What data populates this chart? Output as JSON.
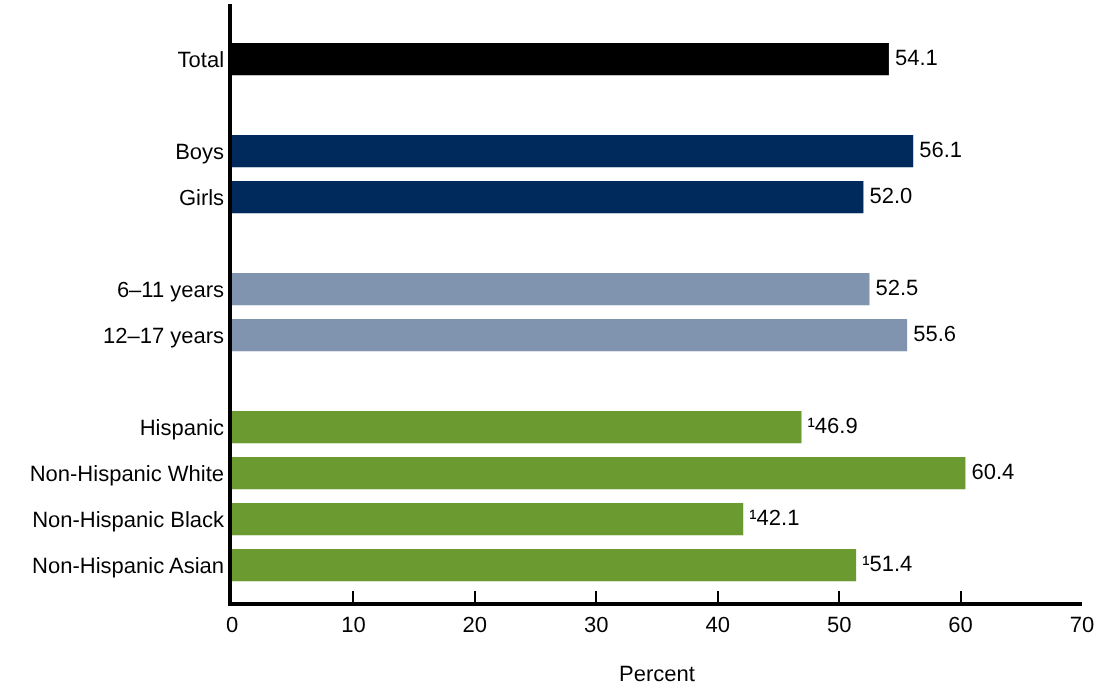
{
  "chart_data": {
    "type": "bar",
    "orientation": "horizontal",
    "xlabel": "Percent",
    "categories": [
      "Total",
      null,
      "Boys",
      "Girls",
      null,
      "6–11 years",
      "12–17 years",
      null,
      "Hispanic",
      "Non-Hispanic White",
      "Non-Hispanic Black",
      "Non-Hispanic Asian"
    ],
    "values": [
      54.1,
      null,
      56.1,
      52.0,
      null,
      52.5,
      55.6,
      null,
      46.9,
      60.4,
      42.1,
      51.4
    ],
    "colors": [
      "#000000",
      "#ffffff",
      "#002a5c",
      "#002a5c",
      "#ffffff",
      "#8094b0",
      "#8094b0",
      "#ffffff",
      "#6b9b30",
      "#6b9b30",
      "#6b9b30",
      "#6b9b30"
    ],
    "value_labels": [
      "54.1",
      null,
      "56.1",
      "52.0",
      null,
      "52.5",
      "55.6",
      null,
      "¹46.9",
      "60.4",
      "¹42.1",
      "¹51.4"
    ],
    "xlim": [
      0,
      70
    ],
    "xticks": [
      0,
      10,
      20,
      30,
      40,
      50,
      60,
      70
    ],
    "legend": false
  }
}
